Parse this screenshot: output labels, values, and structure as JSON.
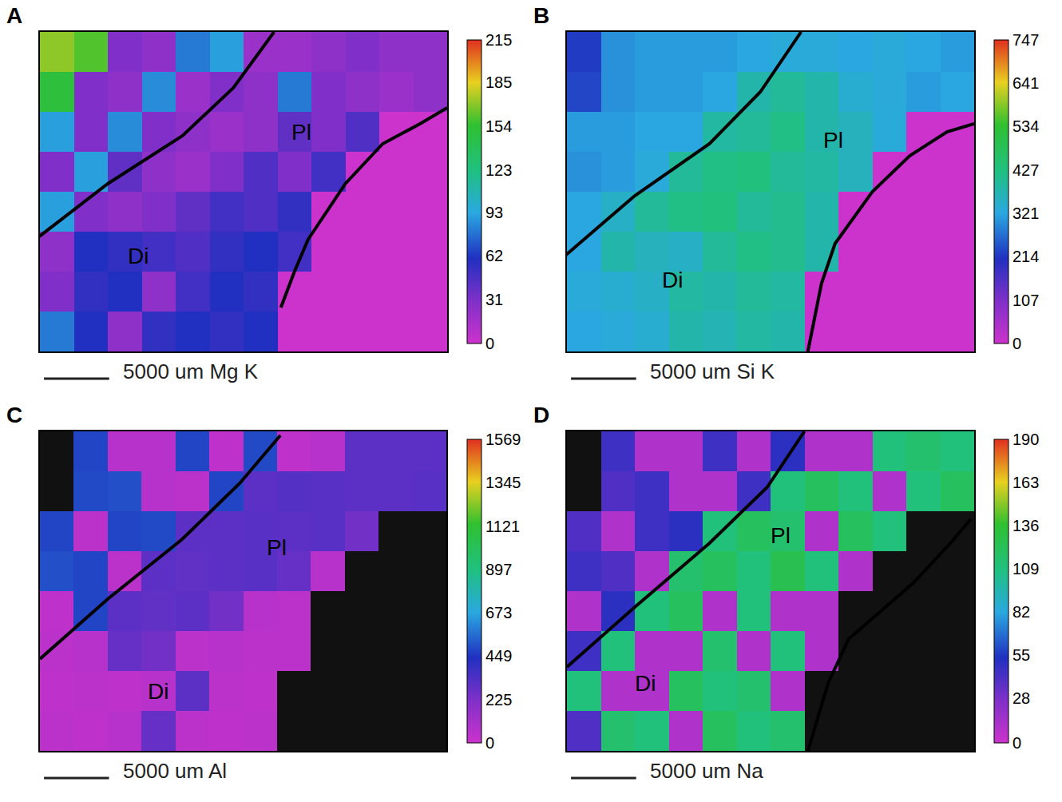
{
  "chart_data": [
    {
      "type": "heatmap",
      "panel": "A",
      "scale_label": "5000 um Mg K",
      "xlim": [
        -0.5,
        11.5
      ],
      "ylim": [
        7.5,
        -0.5
      ],
      "tick_labels": false,
      "zlim": [
        0,
        215
      ],
      "zticks": [
        0,
        31,
        62,
        93,
        123,
        154,
        185,
        215
      ],
      "cells": [
        [
          170,
          160,
          30,
          25,
          80,
          90,
          20,
          20,
          25,
          30,
          25,
          25
        ],
        [
          150,
          30,
          25,
          85,
          20,
          30,
          25,
          80,
          30,
          25,
          20,
          25
        ],
        [
          90,
          30,
          85,
          30,
          25,
          20,
          25,
          40,
          30,
          45,
          0,
          0
        ],
        [
          30,
          90,
          40,
          25,
          20,
          30,
          45,
          30,
          50,
          0,
          0,
          0
        ],
        [
          90,
          30,
          25,
          30,
          40,
          50,
          45,
          55,
          0,
          0,
          0,
          0
        ],
        [
          25,
          60,
          55,
          50,
          45,
          55,
          60,
          50,
          0,
          0,
          0,
          0
        ],
        [
          30,
          55,
          60,
          25,
          50,
          60,
          55,
          0,
          0,
          0,
          0,
          0
        ],
        [
          80,
          60,
          25,
          55,
          60,
          55,
          60,
          0,
          0,
          0,
          0,
          0
        ]
      ],
      "boundaries": [
        {
          "x": [
            -0.55,
            1.5,
            3.7,
            5.2,
            6.4
          ],
          "y": [
            4.64,
            3.3,
            2.1,
            0.9,
            -0.5
          ]
        },
        {
          "x": [
            6.6,
            7.0,
            7.4,
            8.5,
            9.6,
            10.7,
            11.5
          ],
          "y": [
            6.4,
            5.5,
            4.7,
            3.3,
            2.3,
            1.8,
            1.4
          ]
        }
      ],
      "annotations": [
        {
          "text": "Pl",
          "x": 7.2,
          "y": 2.0
        },
        {
          "text": "Di",
          "x": 2.4,
          "y": 5.1
        }
      ]
    },
    {
      "type": "heatmap",
      "panel": "B",
      "scale_label": "5000 um Si K",
      "xlim": [
        -0.5,
        11.5
      ],
      "ylim": [
        7.5,
        -0.5
      ],
      "tick_labels": false,
      "zlim": [
        0,
        747
      ],
      "zticks": [
        0,
        107,
        214,
        321,
        427,
        534,
        641,
        747
      ],
      "cells": [
        [
          220,
          300,
          310,
          310,
          310,
          320,
          330,
          330,
          320,
          330,
          320,
          310
        ],
        [
          230,
          300,
          310,
          310,
          320,
          380,
          400,
          380,
          340,
          330,
          310,
          320
        ],
        [
          310,
          310,
          320,
          320,
          390,
          400,
          420,
          380,
          360,
          330,
          0,
          0
        ],
        [
          300,
          310,
          330,
          400,
          420,
          430,
          400,
          390,
          360,
          0,
          0,
          0
        ],
        [
          320,
          350,
          400,
          420,
          430,
          400,
          410,
          380,
          0,
          0,
          0,
          0
        ],
        [
          320,
          380,
          360,
          350,
          400,
          420,
          410,
          380,
          0,
          0,
          0,
          0
        ],
        [
          330,
          340,
          350,
          390,
          380,
          400,
          390,
          0,
          0,
          0,
          0,
          0
        ],
        [
          320,
          330,
          340,
          380,
          370,
          390,
          380,
          0,
          0,
          0,
          0,
          0
        ]
      ],
      "boundaries": [
        {
          "x": [
            -0.55,
            1.5,
            3.7,
            5.2,
            6.4
          ],
          "y": [
            5.1,
            3.6,
            2.3,
            1.0,
            -0.5
          ]
        },
        {
          "x": [
            6.6,
            7.0,
            7.4,
            8.5,
            9.6,
            10.7,
            11.5
          ],
          "y": [
            7.5,
            5.8,
            4.8,
            3.5,
            2.6,
            2.0,
            1.8
          ]
        }
      ],
      "annotations": [
        {
          "text": "Pl",
          "x": 7.35,
          "y": 2.2
        },
        {
          "text": "Di",
          "x": 2.6,
          "y": 5.7
        }
      ]
    },
    {
      "type": "heatmap",
      "panel": "C",
      "scale_label": "5000 um Al",
      "xlim": [
        -0.5,
        11.5
      ],
      "ylim": [
        7.5,
        -0.5
      ],
      "tick_labels": false,
      "zlim": [
        0,
        1569
      ],
      "zticks": [
        0,
        225,
        449,
        673,
        897,
        1121,
        1345,
        1569
      ],
      "cells": [
        [
          null,
          480,
          60,
          60,
          480,
          40,
          490,
          40,
          60,
          300,
          300,
          300
        ],
        [
          null,
          490,
          500,
          60,
          50,
          480,
          300,
          320,
          310,
          300,
          300,
          310
        ],
        [
          480,
          50,
          480,
          490,
          300,
          300,
          310,
          300,
          310,
          250,
          null,
          null
        ],
        [
          500,
          480,
          50,
          300,
          290,
          300,
          310,
          280,
          60,
          null,
          null,
          null
        ],
        [
          40,
          480,
          300,
          290,
          300,
          250,
          60,
          50,
          null,
          null,
          null,
          null
        ],
        [
          50,
          60,
          280,
          250,
          50,
          60,
          50,
          50,
          null,
          null,
          null,
          null
        ],
        [
          40,
          50,
          40,
          60,
          300,
          50,
          40,
          null,
          null,
          null,
          null,
          null
        ],
        [
          50,
          40,
          60,
          280,
          50,
          40,
          50,
          null,
          null,
          null,
          null,
          null
        ]
      ],
      "boundaries": [
        {
          "x": [
            -0.5,
            1.5,
            3.7,
            5.4,
            6.6
          ],
          "y": [
            5.2,
            3.7,
            2.2,
            0.8,
            -0.4
          ]
        }
      ],
      "annotations": [
        {
          "text": "Pl",
          "x": 6.5,
          "y": 2.4
        },
        {
          "text": "Di",
          "x": 3.0,
          "y": 6.0
        }
      ]
    },
    {
      "type": "heatmap",
      "panel": "D",
      "scale_label": "5000 um Na",
      "xlim": [
        -0.5,
        11.5
      ],
      "ylim": [
        7.5,
        -0.5
      ],
      "tick_labels": false,
      "zlim": [
        0,
        190
      ],
      "zticks": [
        0,
        28,
        55,
        82,
        109,
        136,
        163,
        190
      ],
      "cells": [
        [
          null,
          45,
          10,
          10,
          45,
          10,
          50,
          10,
          10,
          110,
          115,
          110
        ],
        [
          null,
          40,
          45,
          10,
          10,
          45,
          110,
          120,
          110,
          10,
          110,
          120
        ],
        [
          40,
          10,
          45,
          50,
          110,
          120,
          115,
          10,
          120,
          110,
          null,
          null
        ],
        [
          45,
          40,
          10,
          115,
          120,
          110,
          125,
          110,
          10,
          null,
          null,
          null
        ],
        [
          10,
          50,
          110,
          120,
          10,
          110,
          10,
          10,
          null,
          null,
          null,
          null
        ],
        [
          45,
          110,
          10,
          10,
          115,
          10,
          110,
          10,
          null,
          null,
          null,
          null
        ],
        [
          110,
          10,
          10,
          120,
          110,
          115,
          10,
          null,
          null,
          null,
          null,
          null
        ],
        [
          40,
          115,
          110,
          10,
          120,
          110,
          115,
          null,
          null,
          null,
          null,
          null
        ]
      ],
      "boundaries": [
        {
          "x": [
            -0.5,
            1.5,
            3.7,
            5.4,
            6.5
          ],
          "y": [
            5.4,
            3.9,
            2.3,
            0.9,
            -0.5
          ]
        },
        {
          "x": [
            6.6,
            7.2,
            7.8,
            9.7,
            10.8,
            11.4
          ],
          "y": [
            7.5,
            5.8,
            4.7,
            3.3,
            2.3,
            1.7
          ]
        }
      ],
      "annotations": [
        {
          "text": "Pl",
          "x": 5.8,
          "y": 2.1
        },
        {
          "text": "Di",
          "x": 1.8,
          "y": 5.8
        }
      ]
    }
  ]
}
